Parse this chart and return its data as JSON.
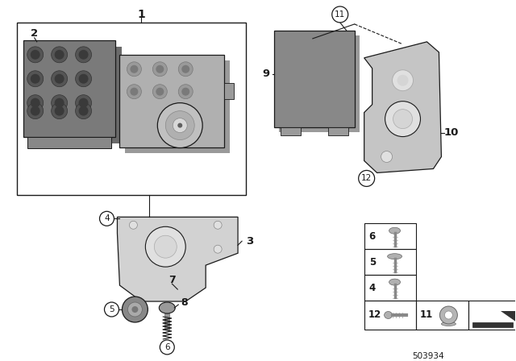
{
  "background_color": "#ffffff",
  "diagram_id": "503934",
  "line_color": "#1a1a1a",
  "gray_dark": "#6a6a6a",
  "gray_mid": "#9a9a9a",
  "gray_light": "#c8c8c8",
  "gray_lighter": "#e0e0e0",
  "gray_body": "#b0b0b0",
  "gray_bracket": "#d2d2d2"
}
